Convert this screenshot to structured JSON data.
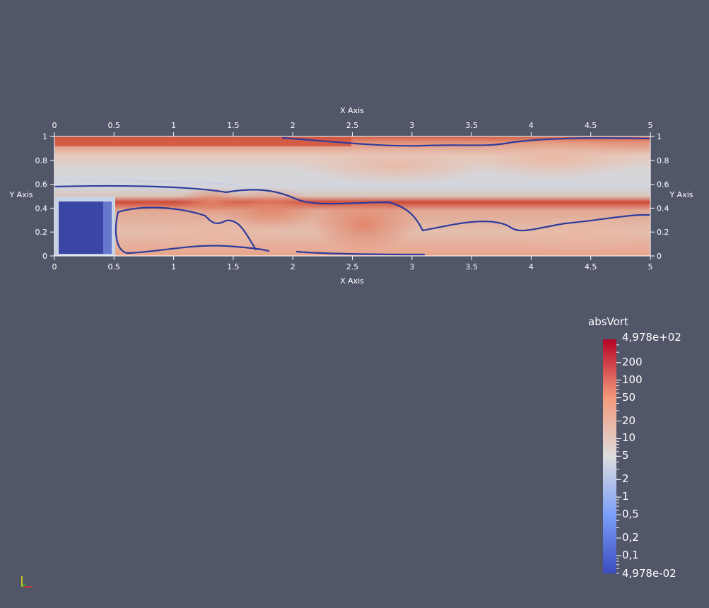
{
  "plot": {
    "x_axis_title_top": "X Axis",
    "x_axis_title_bottom": "X Axis",
    "y_axis_title_left": "Y Axis",
    "y_axis_title_right": "Y Axis",
    "x_ticks": [
      "0",
      "0.5",
      "1",
      "1.5",
      "2",
      "2.5",
      "3",
      "3.5",
      "4",
      "4.5",
      "5"
    ],
    "y_ticks": [
      "0",
      "0.2",
      "0.4",
      "0.6",
      "0.8",
      "1"
    ],
    "x_range": [
      0,
      5
    ],
    "y_range": [
      0,
      1
    ]
  },
  "legend": {
    "title": "absVort",
    "max_label": "4,978e+02",
    "min_label": "4,978e-02",
    "labels": [
      "200",
      "100",
      "50",
      "20",
      "10",
      "5",
      "2",
      "1",
      "0,5",
      "0,2",
      "0,1"
    ],
    "colormap": "cool-to-warm",
    "colors": {
      "low": "#3b4cc0",
      "mid": "#dddddd",
      "high": "#b40426"
    }
  },
  "background_color": "#525669",
  "orientation_icon": "axes-triad-icon"
}
